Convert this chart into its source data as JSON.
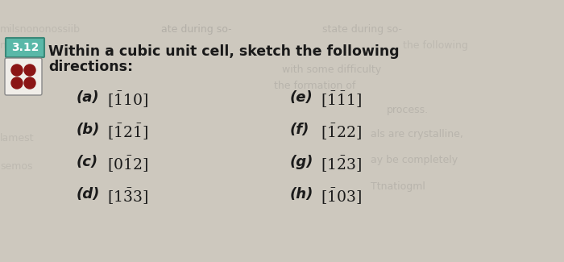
{
  "title_line1": "Within a cubic unit cell, sketch the following",
  "title_line2": "directions:",
  "problem_num": "3.12",
  "bg_color": "#d4cfc8",
  "directions_left": [
    {
      "label": "(a)",
      "dir": "[\\u012110]",
      "parts": [
        "\\u0121",
        "1",
        "1",
        "0"
      ]
    },
    {
      "label": "(b)",
      "dir": "[\\u012112\\u01211]",
      "parts": [
        "\\u0121",
        "1",
        "2",
        "\\u0121",
        "1"
      ]
    },
    {
      "label": "(c)",
      "dir": "[0\\u01212]",
      "parts": [
        "0",
        "\\u0121",
        "1",
        "2"
      ]
    },
    {
      "label": "(d)",
      "dir": "[1\\u01213\\u02133]",
      "parts": [
        "1",
        "\\u0121",
        "3",
        "\\u0121",
        "3"
      ]
    }
  ],
  "directions_right": [
    {
      "label": "(e)",
      "dir": "[\\u0121\\u012111]"
    },
    {
      "label": "(f)",
      "dir": "[\\u01211\\u02122]"
    },
    {
      "label": "(g)",
      "dir": "[1\\u02122\\u02133]"
    },
    {
      "label": "(h)",
      "dir": "[\\u01210\\u02133]"
    }
  ],
  "box_color_num": "#4a9a8a",
  "box_color_icon": "#8B2222",
  "text_color": "#1a1a1a",
  "faded_text_color": "#aaaaaa"
}
